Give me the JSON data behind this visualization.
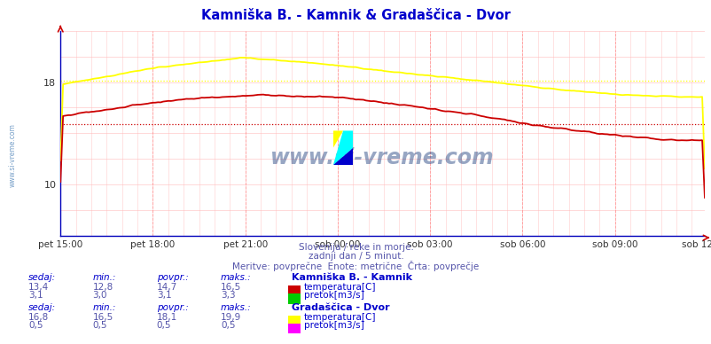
{
  "title": "Kamniška B. - Kamnik & Gradaščica - Dvor",
  "title_color": "#0000cc",
  "bg_color": "#ffffff",
  "plot_bg_color": "#ffffff",
  "x_ticks_labels": [
    "pet 15:00",
    "pet 18:00",
    "pet 21:00",
    "sob 00:00",
    "sob 03:00",
    "sob 06:00",
    "sob 09:00",
    "sob 12:00"
  ],
  "x_ticks_pos": [
    0,
    36,
    72,
    108,
    144,
    180,
    216,
    251
  ],
  "n_points": 252,
  "ylim_min": 6,
  "ylim_max": 22,
  "ytick_vals": [
    10,
    18
  ],
  "watermark": "www.si-vreme.com",
  "watermark_color": "#1a3a7a",
  "subtitle1": "Slovenija / reke in morje.",
  "subtitle2": "zadnji dan / 5 minut.",
  "subtitle3": "Meritve: povprečne  Enote: metrične  Črta: povprečje",
  "subtitle_color": "#5555aa",
  "legend_text_color": "#0000cc",
  "value_color": "#5555aa",
  "col_headers": [
    "sedaj:",
    "min.:",
    "povpr.:",
    "maks.:"
  ],
  "kamnik_header": "Kamniška B. - Kamnik",
  "kamnik_temp_values": [
    "13,4",
    "12,8",
    "14,7",
    "16,5"
  ],
  "kamnik_temp_label": "temperatura[C]",
  "kamnik_temp_color": "#cc0000",
  "kamnik_pretok_values": [
    "3,1",
    "3,0",
    "3,1",
    "3,3"
  ],
  "kamnik_pretok_label": "pretok[m3/s]",
  "kamnik_pretok_color": "#00cc00",
  "dvor_header": "Gradaščica - Dvor",
  "dvor_temp_values": [
    "16,8",
    "16,5",
    "18,1",
    "19,9"
  ],
  "dvor_temp_label": "temperatura[C]",
  "dvor_temp_color": "#ffff00",
  "dvor_pretok_values": [
    "0,5",
    "0,5",
    "0,5",
    "0,5"
  ],
  "dvor_pretok_label": "pretok[m3/s]",
  "dvor_pretok_color": "#ff00ff",
  "avg_kamnik_temp": 14.7,
  "avg_dvor_temp": 18.1,
  "avg_kamnik_pretok": 3.1,
  "avg_dvor_pretok": 0.5,
  "grid_v_color": "#ffaaaa",
  "grid_h_color": "#ffcccc",
  "axis_color": "#0000bb",
  "watermark_left": "www.si-vreme.com"
}
